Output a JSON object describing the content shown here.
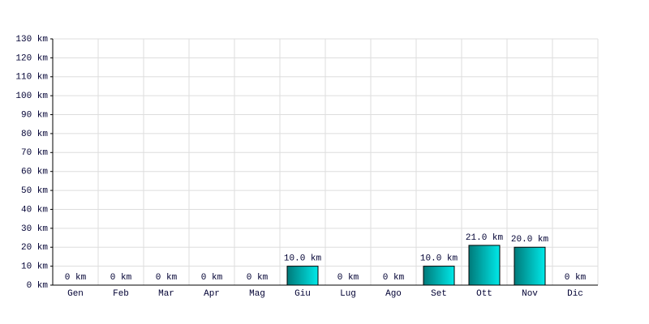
{
  "chart_data": {
    "type": "bar",
    "categories": [
      "Gen",
      "Feb",
      "Mar",
      "Apr",
      "Mag",
      "Giu",
      "Lug",
      "Ago",
      "Set",
      "Ott",
      "Nov",
      "Dic"
    ],
    "values": [
      0,
      0,
      0,
      0,
      0,
      10,
      0,
      0,
      10,
      21,
      20,
      0
    ],
    "value_labels": [
      "0 km",
      "0 km",
      "0 km",
      "0 km",
      "0 km",
      "10.0 km",
      "0 km",
      "0 km",
      "10.0 km",
      "21.0 km",
      "20.0 km",
      "0 km"
    ],
    "color": "#00e8e8",
    "ylim": [
      0,
      130
    ],
    "yticks": [
      {
        "value": 0,
        "label": "0 km"
      },
      {
        "value": 10,
        "label": "10 km"
      },
      {
        "value": 20,
        "label": "20 km"
      },
      {
        "value": 30,
        "label": "30 km"
      },
      {
        "value": 40,
        "label": "40 km"
      },
      {
        "value": 50,
        "label": "50 km"
      },
      {
        "value": 60,
        "label": "60 km"
      },
      {
        "value": 70,
        "label": "70 km"
      },
      {
        "value": 80,
        "label": "80 km"
      },
      {
        "value": 90,
        "label": "90 km"
      },
      {
        "value": 100,
        "label": "100 km"
      },
      {
        "value": 110,
        "label": "110 km"
      },
      {
        "value": 120,
        "label": "120 km"
      },
      {
        "value": 130,
        "label": "130 km"
      }
    ],
    "grid": true
  }
}
